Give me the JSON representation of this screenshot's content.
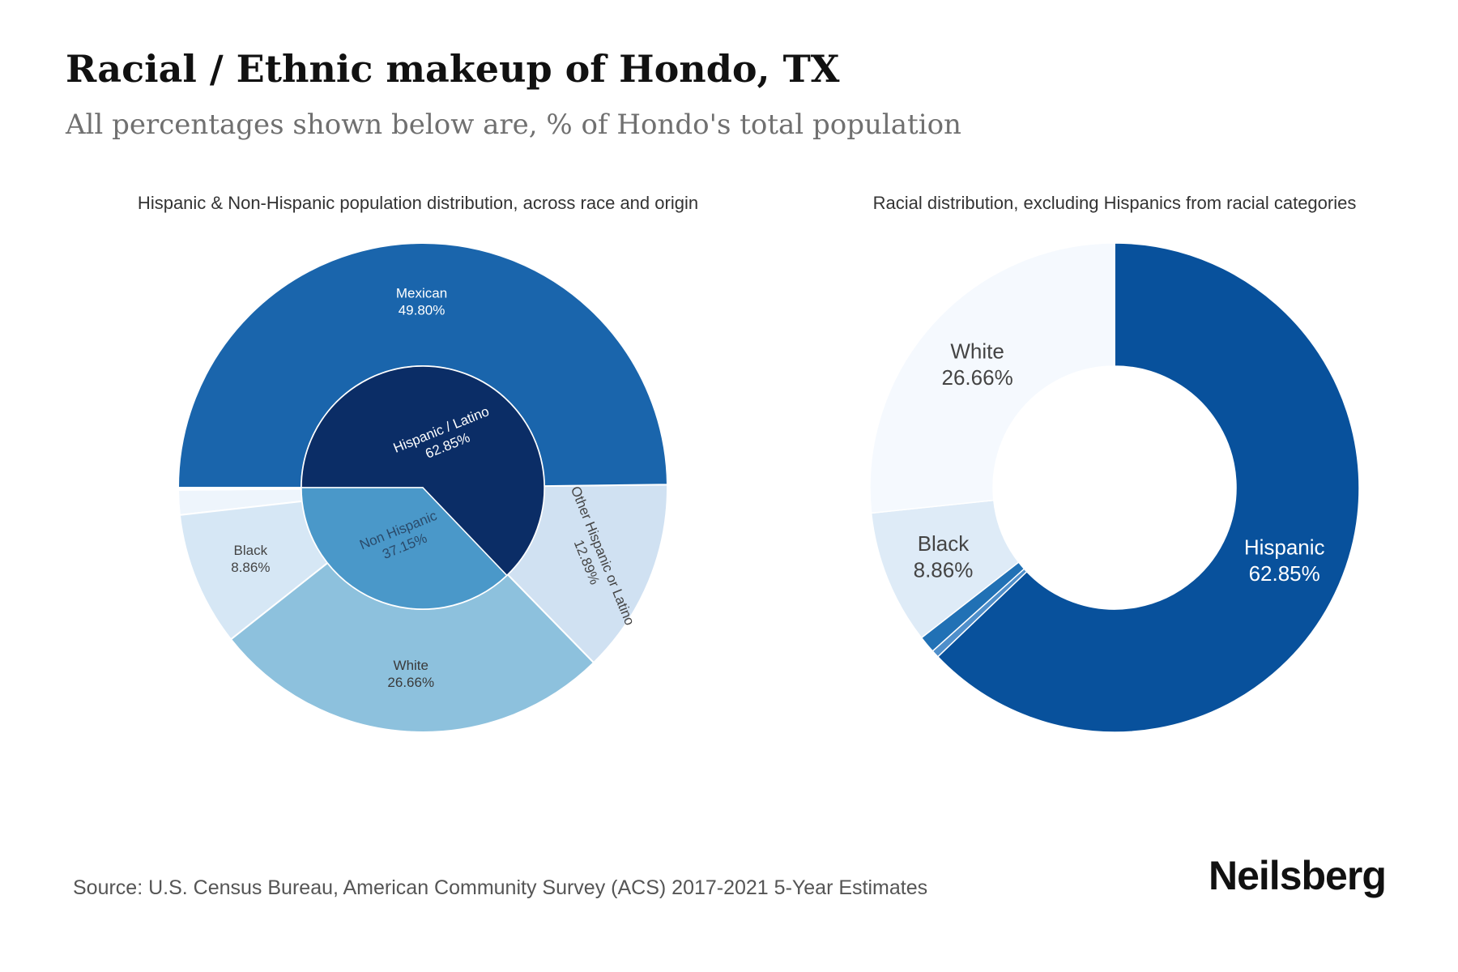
{
  "header": {
    "title": "Racial / Ethnic makeup of Hondo, TX",
    "subtitle": "All percentages shown below are, % of Hondo's total population"
  },
  "footer": {
    "source": "Source: U.S. Census Bureau, American Community Survey (ACS) 2017-2021 5-Year Estimates",
    "brand": "Neilsberg"
  },
  "chart_data": [
    {
      "type": "pie",
      "subtype": "sunburst",
      "title": "Hispanic & Non-Hispanic population distribution, across race and origin",
      "inner": [
        {
          "label": "Hispanic / Latino",
          "value": 62.85,
          "display": "62.85%",
          "color": "#0b2d66",
          "text_color": "#ffffff"
        },
        {
          "label": "Non Hispanic",
          "value": 37.15,
          "display": "37.15%",
          "color": "#4a98c9",
          "text_color": "#2a4a6a"
        }
      ],
      "outer": [
        {
          "label": "Mexican",
          "value": 49.8,
          "display": "49.80%",
          "parent": "Hispanic / Latino",
          "color": "#1a65ac",
          "text_color": "#ffffff",
          "show_label": true
        },
        {
          "label": "Other Hispanic or Latino",
          "value": 12.89,
          "display": "12.89%",
          "parent": "Hispanic / Latino",
          "color": "#d0e1f2",
          "text_color": "#444444",
          "show_label": true
        },
        {
          "label": "White",
          "value": 26.66,
          "display": "26.66%",
          "parent": "Non Hispanic",
          "color": "#8dc1dd",
          "text_color": "#3a3a3a",
          "show_label": true
        },
        {
          "label": "Black",
          "value": 8.86,
          "display": "8.86%",
          "parent": "Non Hispanic",
          "color": "#d6e7f5",
          "text_color": "#444444",
          "show_label": true
        },
        {
          "label": "",
          "value": 1.63,
          "display": "",
          "parent": "Non Hispanic",
          "color": "#eef5fc",
          "text_color": "#444444",
          "show_label": false
        }
      ]
    },
    {
      "type": "pie",
      "subtype": "donut",
      "title": "Racial distribution, excluding Hispanics from racial categories",
      "slices": [
        {
          "label": "Hispanic",
          "value": 62.85,
          "display": "62.85%",
          "color": "#08519c",
          "text_color": "#ffffff",
          "show_label": true
        },
        {
          "label": "",
          "value": 0.5,
          "display": "",
          "color": "#4f8fcb",
          "text_color": "#444444",
          "show_label": false
        },
        {
          "label": "",
          "value": 1.13,
          "display": "",
          "color": "#2171b5",
          "text_color": "#444444",
          "show_label": false
        },
        {
          "label": "Black",
          "value": 8.86,
          "display": "8.86%",
          "color": "#deebf7",
          "text_color": "#444444",
          "show_label": true
        },
        {
          "label": "White",
          "value": 26.66,
          "display": "26.66%",
          "color": "#f5f9fe",
          "text_color": "#444444",
          "show_label": true
        }
      ]
    }
  ]
}
